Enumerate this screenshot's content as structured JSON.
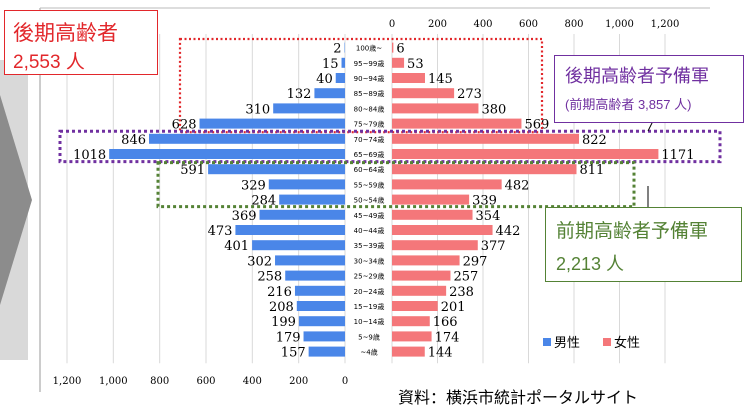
{
  "chart_data": {
    "type": "bar",
    "subtype": "population-pyramid",
    "categories": [
      "100歳~",
      "95~99歳",
      "90~94歳",
      "85~89歳",
      "80~84歳",
      "75~79歳",
      "70~74歳",
      "65~69歳",
      "60~64歳",
      "55~59歳",
      "50~54歳",
      "45~49歳",
      "40~44歳",
      "35~39歳",
      "30~34歳",
      "25~29歳",
      "20~24歳",
      "15~19歳",
      "10~14歳",
      "5~9歳",
      "~4歳"
    ],
    "series": [
      {
        "name": "男性",
        "color": "#4a86e8",
        "values": [
          2,
          15,
          40,
          132,
          310,
          628,
          846,
          1018,
          591,
          329,
          284,
          369,
          473,
          401,
          302,
          258,
          216,
          208,
          199,
          179,
          157
        ]
      },
      {
        "name": "女性",
        "color": "#f4777a",
        "values": [
          6,
          53,
          145,
          273,
          380,
          569,
          822,
          1171,
          811,
          482,
          339,
          354,
          442,
          377,
          297,
          257,
          238,
          201,
          166,
          174,
          144
        ]
      }
    ],
    "xticks": [
      "1,200",
      "1,000",
      "800",
      "600",
      "400",
      "200",
      "0"
    ],
    "xticks_right": [
      "0",
      "200",
      "400",
      "600",
      "800",
      "1,000",
      "1,200"
    ],
    "xlim": [
      0,
      1200
    ],
    "legend_position": "bottom-right",
    "grid": true
  },
  "annotations": {
    "late_elderly": {
      "title": "後期高齢者",
      "value": "2,553 人",
      "color": "#e2272b"
    },
    "late_elderly_reserve": {
      "title": "後期高齢者予備軍",
      "sub": "(前期高齢者 3,857 人)",
      "color": "#7030a0"
    },
    "early_elderly_reserve": {
      "title": "前期高齢者予備軍",
      "value": "2,213 人",
      "color": "#548235"
    }
  },
  "source": "資料：横浜市統計ポータルサイト"
}
